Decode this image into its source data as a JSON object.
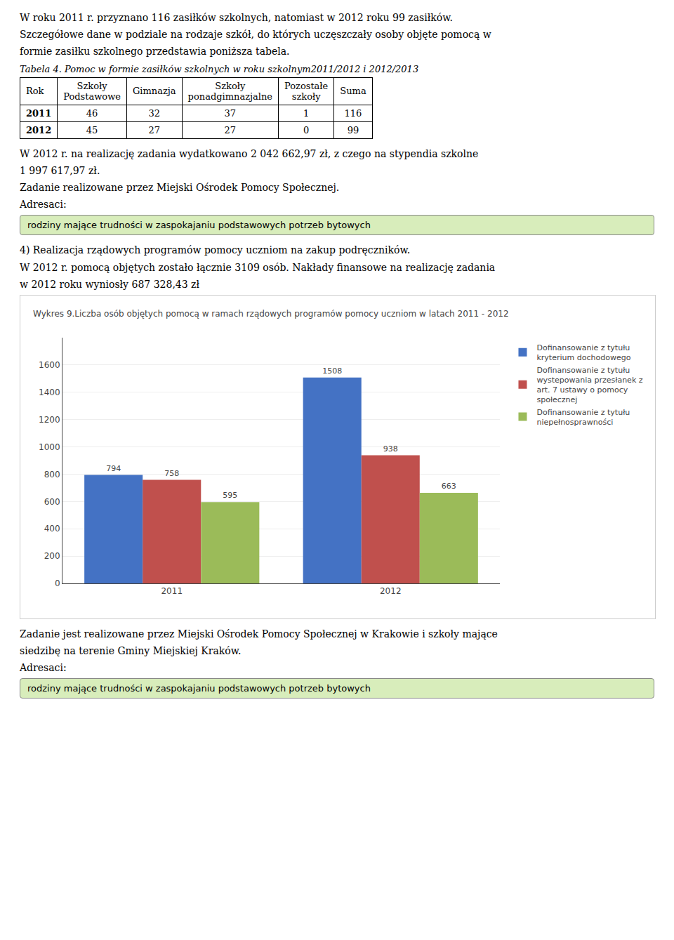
{
  "texts_before": [
    "W roku 2011 r. przyznano 116 zasiłków szkolnych, natomiast w 2012 roku 99 zasiłków.",
    "Szczegółowe dane w podziale na rodzaje szkół, do których uczęszczały osoby objęte pomocą w",
    "formie zasiłku szkolnego przedstawia poniższa tabela.",
    {
      "caption": "Tabela 4. Pomoc w formie zasiłków szkolnych w roku szkolnym2011/2012 i  2012/2013",
      "headers": [
        "Rok",
        "Szkoły\nPodstawowe",
        "Gimnazja",
        "Szkoły\nponadgimnazjalne",
        "Pozostałe\nszkoły",
        "Suma"
      ],
      "rows": [
        [
          "2011",
          "46",
          "32",
          "37",
          "1",
          "116"
        ],
        [
          "2012",
          "45",
          "27",
          "27",
          "0",
          "99"
        ]
      ]
    },
    "W 2012 r. na realizację zadania wydatkowano 2 042 662,97 zł, z czego na stypendia szkolne",
    "1 997 617,97 zł.",
    "Zadanie realizowane przez Miejski Ośrodek Pomocy Społecznej.",
    "Adresaci:",
    {
      "box": "rodziny mające trudności w zaspokajaniu podstawowych potrzeb bytowych",
      "color": "#d8edbb"
    },
    "4)  Realizacja rządowych programów pomocy uczniom na zakup podręczników.",
    "W 2012 r. pomocą objętych zostało łącznie 3109 osób. Nakłady finansowe na realizację zadania",
    "w 2012 roku wyniosły 687 328,43 zł"
  ],
  "chart_data": {
    "type": "bar",
    "title": "Wykres 9.Liczba osób objętych pomocą w ramach rządowych programów pomocy uczniom w latach 2011 - 2012",
    "categories": [
      "2011",
      "2012"
    ],
    "series": [
      {
        "name": "Dofinansowanie z tytułu\nkryterium dochodowego",
        "color": "#4472C4",
        "values": [
          794,
          1508
        ]
      },
      {
        "name": "Dofinansowanie z tytułu\nwystepowania przesłanek z\nart. 7 ustawy o pomocy\nspołecznej",
        "color": "#C0504D",
        "values": [
          758,
          938
        ]
      },
      {
        "name": "Dofinansowanie z tytułu\nniepełnosprawności",
        "color": "#9BBB59",
        "values": [
          595,
          663
        ]
      }
    ],
    "ylim": [
      0,
      1800
    ],
    "yticks": [
      0,
      200,
      400,
      600,
      800,
      1000,
      1200,
      1400,
      1600
    ],
    "grid": true,
    "data_labels": true,
    "legend": "right"
  },
  "texts_after": [
    "Zadanie jest realizowane przez Miejski Ośrodek Pomocy Społecznej w Krakowie i szkoły mające",
    "siedzibę na terenie Gminy Miejskiej Kraków.",
    "Adresaci:",
    {
      "box": "rodziny mające trudności w zaspokajaniu podstawowych potrzeb bytowych",
      "color": "#d8edbb"
    }
  ]
}
